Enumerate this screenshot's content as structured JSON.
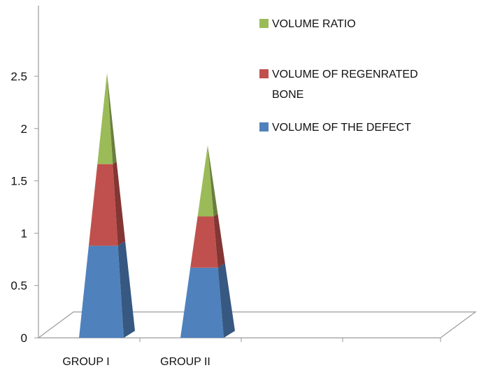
{
  "chart_data": {
    "type": "bar",
    "style": "3d-stacked-pyramid",
    "categories": [
      "GROUP I",
      "GROUP II"
    ],
    "series": [
      {
        "name": "VOLUME OF THE DEFECT",
        "values": [
          0.88,
          0.67
        ],
        "color": "#4f81bd"
      },
      {
        "name": "VOLUME OF REGENRATED BONE",
        "values": [
          0.78,
          0.49
        ],
        "color": "#c0504d"
      },
      {
        "name": "VOLUME RATIO",
        "values": [
          0.87,
          0.68
        ],
        "color": "#9bbb59"
      }
    ],
    "y_ticks": [
      "0",
      "0.5",
      "1",
      "1.5",
      "2",
      "2.5"
    ],
    "ylim": [
      0,
      2.5
    ],
    "legend": {
      "placement": "top-right",
      "items": [
        {
          "lines": [
            "VOLUME RATIO"
          ],
          "color": "#9bbb59"
        },
        {
          "lines": [
            "VOLUME OF REGENRATED",
            "BONE"
          ],
          "color": "#c0504d"
        },
        {
          "lines": [
            "VOLUME OF THE DEFECT"
          ],
          "color": "#4f81bd"
        }
      ]
    },
    "grid": false
  }
}
